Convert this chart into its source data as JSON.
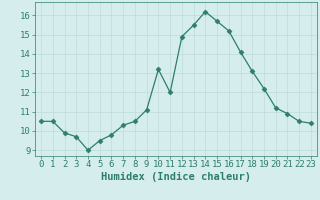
{
  "x": [
    0,
    1,
    2,
    3,
    4,
    5,
    6,
    7,
    8,
    9,
    10,
    11,
    12,
    13,
    14,
    15,
    16,
    17,
    18,
    19,
    20,
    21,
    22,
    23
  ],
  "y": [
    10.5,
    10.5,
    9.9,
    9.7,
    9.0,
    9.5,
    9.8,
    10.3,
    10.5,
    11.1,
    13.2,
    12.0,
    14.9,
    15.5,
    16.2,
    15.7,
    15.2,
    14.1,
    13.1,
    12.2,
    11.2,
    10.9,
    10.5,
    10.4
  ],
  "line_color": "#2e7d6e",
  "marker": "D",
  "marker_size": 2.5,
  "background_color": "#d5eeed",
  "grid_color": "#c0dbd8",
  "xlabel": "Humidex (Indice chaleur)",
  "xlim": [
    -0.5,
    23.5
  ],
  "ylim": [
    8.7,
    16.7
  ],
  "yticks": [
    9,
    10,
    11,
    12,
    13,
    14,
    15,
    16
  ],
  "xticks": [
    0,
    1,
    2,
    3,
    4,
    5,
    6,
    7,
    8,
    9,
    10,
    11,
    12,
    13,
    14,
    15,
    16,
    17,
    18,
    19,
    20,
    21,
    22,
    23
  ],
  "tick_color": "#2e7d6e",
  "label_color": "#2e7d6e",
  "font_size": 6.5,
  "xlabel_fontsize": 7.5
}
